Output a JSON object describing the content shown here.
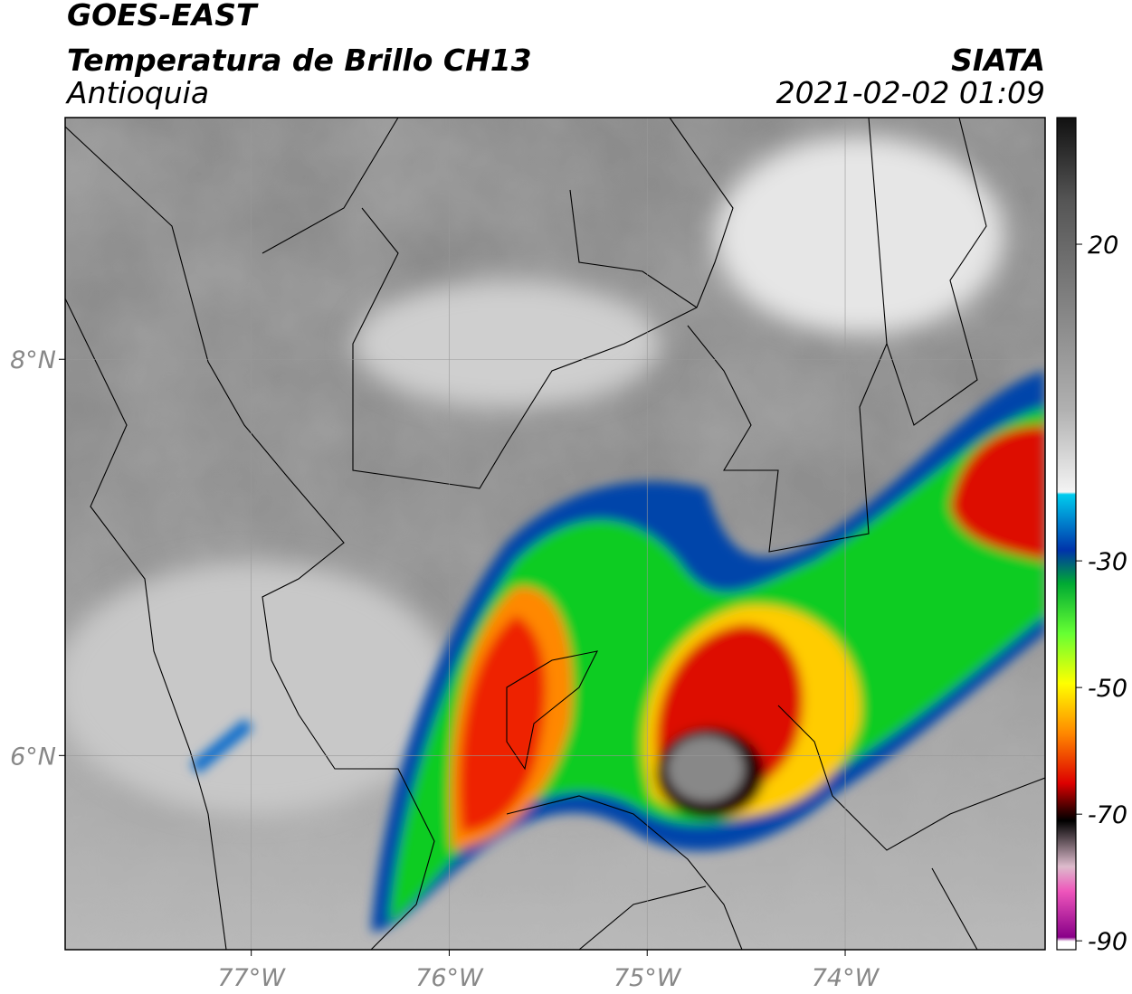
{
  "header": {
    "title": "GOES-EAST",
    "subtitle": "Temperatura de Brillo CH13",
    "region": "Antioquia",
    "source": "SIATA",
    "datetime": "2021-02-02 01:09"
  },
  "map": {
    "xlim": [
      -77.94,
      -72.99
    ],
    "ylim": [
      5.02,
      9.22
    ],
    "xticks": [
      {
        "value": -77,
        "label": "77°W"
      },
      {
        "value": -76,
        "label": "76°W"
      },
      {
        "value": -75,
        "label": "75°W"
      },
      {
        "value": -74,
        "label": "74°W"
      }
    ],
    "yticks": [
      {
        "value": 8,
        "label": "8°N"
      },
      {
        "value": 6,
        "label": "6°N"
      }
    ],
    "grid": true
  },
  "colorbar": {
    "lim": [
      -91.4,
      40
    ],
    "ticks": [
      20,
      -30,
      -50,
      -70,
      -90
    ]
  }
}
